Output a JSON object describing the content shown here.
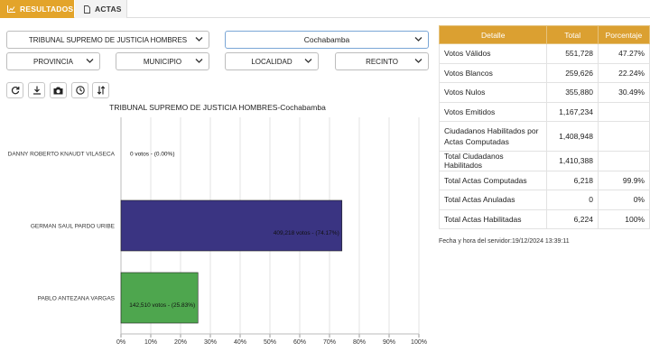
{
  "tabs": {
    "results": "RESULTADOS",
    "actas": "ACTAS"
  },
  "filters": {
    "election": "TRIBUNAL SUPREMO DE JUSTICIA HOMBRES",
    "department": "Cochabamba",
    "province": "PROVINCIA",
    "municipality": "MUNICIPIO",
    "locality": "LOCALIDAD",
    "precinct": "RECINTO"
  },
  "toolbar": {
    "icons": [
      "refresh-icon",
      "download-icon",
      "camera-icon",
      "clock-icon",
      "sort-icon"
    ]
  },
  "chart_data": {
    "type": "bar",
    "orientation": "horizontal",
    "title": "TRIBUNAL SUPREMO DE JUSTICIA HOMBRES-Cochabamba",
    "categories": [
      "DANNY ROBERTO KNAUDT VILASECA",
      "GERMAN SAUL PARDO URIBE",
      "PABLO ANTEZANA VARGAS"
    ],
    "values": [
      0,
      74.17,
      25.83
    ],
    "labels": [
      "0 votos - (0.00%)",
      "409,218 votos - (74.17%)",
      "142,510 votos - (25.83%)"
    ],
    "colors": [
      "#3f3a8c",
      "#3a3482",
      "#4ea64e"
    ],
    "xlim": [
      0,
      100
    ],
    "xticks": [
      "0%",
      "10%",
      "20%",
      "30%",
      "40%",
      "50%",
      "60%",
      "70%",
      "80%",
      "90%",
      "100%"
    ],
    "grid": true
  },
  "table": {
    "headers": [
      "Detalle",
      "Total",
      "Porcentaje"
    ],
    "rows": [
      [
        "Votos Válidos",
        "551,728",
        "47.27%"
      ],
      [
        "Votos Blancos",
        "259,626",
        "22.24%"
      ],
      [
        "Votos Nulos",
        "355,880",
        "30.49%"
      ],
      [
        "Votos Emitidos",
        "1,167,234",
        ""
      ],
      [
        "Ciudadanos Habilitados por Actas Computadas",
        "1,408,948",
        ""
      ],
      [
        "Total Ciudadanos Habilitados",
        "1,410,388",
        ""
      ],
      [
        "Total Actas Computadas",
        "6,218",
        "99.9%"
      ],
      [
        "Total Actas Anuladas",
        "0",
        "0%"
      ],
      [
        "Total Actas Habilitadas",
        "6,224",
        "100%"
      ]
    ]
  },
  "server": {
    "label": "Fecha y hora del servidor:",
    "value": "19/12/2024 13:39:11"
  }
}
